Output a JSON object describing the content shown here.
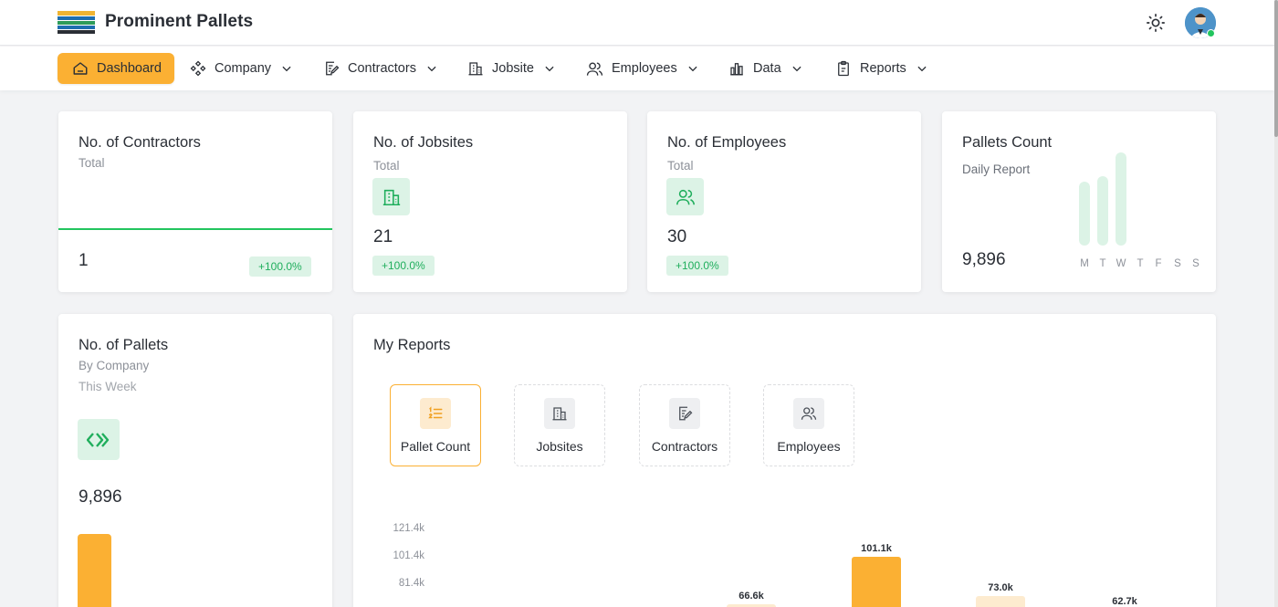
{
  "header": {
    "brand": "Prominent Pallets",
    "logo_icon": "pallet-logo-icon",
    "theme_icon": "sun-icon",
    "avatar_icon": "user-avatar-icon"
  },
  "nav": {
    "items": [
      {
        "label": "Dashboard",
        "icon": "home-icon",
        "active": true
      },
      {
        "label": "Company",
        "icon": "components-icon"
      },
      {
        "label": "Contractors",
        "icon": "contract-icon"
      },
      {
        "label": "Jobsite",
        "icon": "building-icon"
      },
      {
        "label": "Employees",
        "icon": "users-icon"
      },
      {
        "label": "Data",
        "icon": "bar-chart-icon"
      },
      {
        "label": "Reports",
        "icon": "clipboard-icon"
      }
    ]
  },
  "cards": {
    "contractors": {
      "title": "No. of Contractors",
      "sub": "Total",
      "value": "1",
      "change": "+100.0%"
    },
    "jobsites": {
      "title": "No. of Jobsites",
      "sub": "Total",
      "value": "21",
      "change": "+100.0%"
    },
    "employees": {
      "title": "No. of Employees",
      "sub": "Total",
      "value": "30",
      "change": "+100.0%"
    },
    "pallets_count": {
      "title": "Pallets Count",
      "sub": "Daily Report",
      "value": "9,896",
      "days": [
        "M",
        "T",
        "W",
        "T",
        "F",
        "S",
        "S"
      ]
    },
    "pallets": {
      "title": "No. of Pallets",
      "sub": "By Company",
      "sub2": "This Week",
      "value": "9,896"
    }
  },
  "reports": {
    "title": "My Reports",
    "tiles": [
      {
        "label": "Pallet Count",
        "icon": "ordered-list-icon",
        "active": true
      },
      {
        "label": "Jobsites",
        "icon": "building-icon"
      },
      {
        "label": "Contractors",
        "icon": "contract-icon"
      },
      {
        "label": "Employees",
        "icon": "users-icon"
      }
    ]
  },
  "colors": {
    "accent": "#fbb033",
    "success": "#22c55e",
    "success_bg": "#dcf3e6"
  },
  "chart_data": {
    "type": "bar",
    "y_ticks": [
      "121.4k",
      "101.4k",
      "81.4k"
    ],
    "values": [
      66.6,
      101.1,
      73.0,
      62.7
    ],
    "value_labels": [
      "66.6k",
      "101.1k",
      "73.0k",
      "62.7k"
    ],
    "highlighted": 1
  }
}
